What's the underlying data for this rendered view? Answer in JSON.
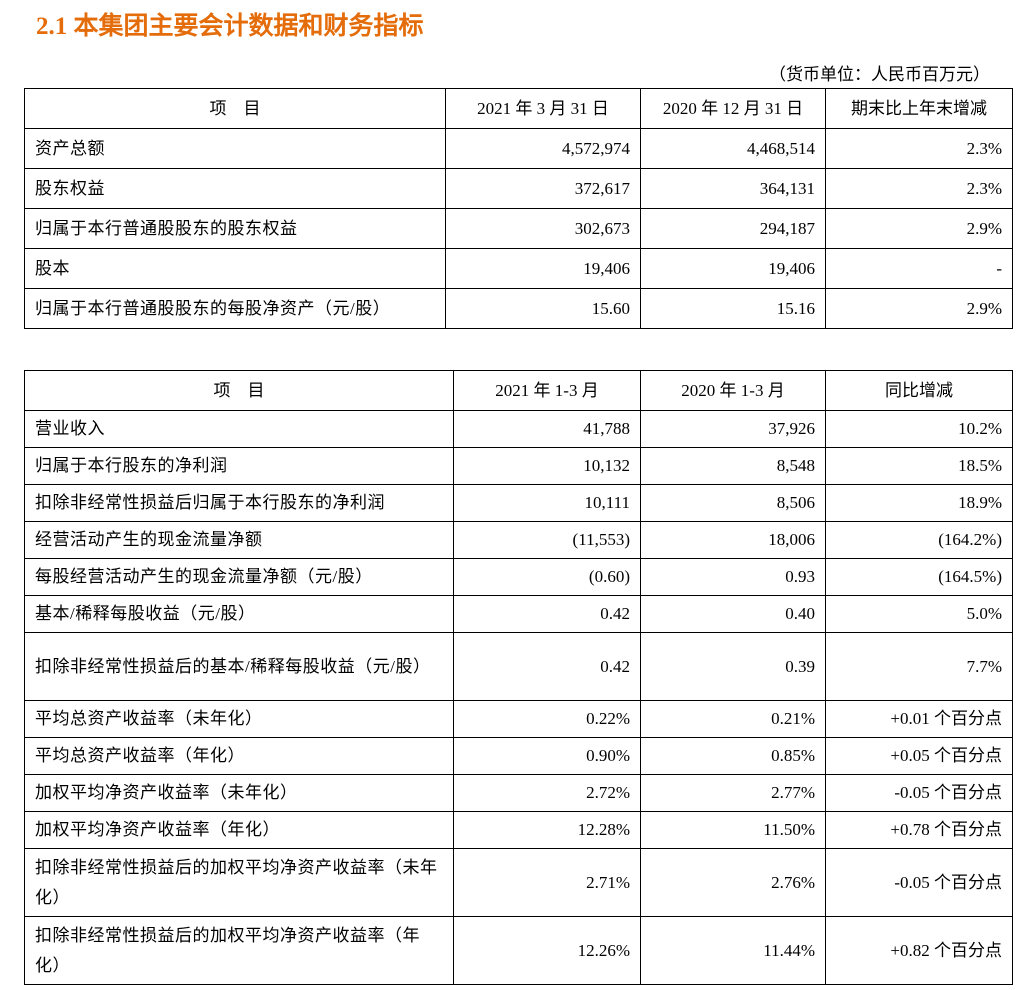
{
  "header": {
    "title": "2.1 本集团主要会计数据和财务指标",
    "unit": "（货币单位：人民币百万元）"
  },
  "table1": {
    "columns": [
      "项　目",
      "2021 年 3 月 31 日",
      "2020 年 12 月 31 日",
      "期末比上年末增减"
    ],
    "rows": [
      [
        "资产总额",
        "4,572,974",
        "4,468,514",
        "2.3%"
      ],
      [
        "股东权益",
        "372,617",
        "364,131",
        "2.3%"
      ],
      [
        "归属于本行普通股股东的股东权益",
        "302,673",
        "294,187",
        "2.9%"
      ],
      [
        "股本",
        "19,406",
        "19,406",
        "-"
      ],
      [
        "归属于本行普通股股东的每股净资产（元/股）",
        "15.60",
        "15.16",
        "2.9%"
      ]
    ]
  },
  "table2": {
    "columns": [
      "项　目",
      "2021 年 1-3 月",
      "2020 年 1-3 月",
      "同比增减"
    ],
    "rows": [
      [
        "营业收入",
        "41,788",
        "37,926",
        "10.2%"
      ],
      [
        "归属于本行股东的净利润",
        "10,132",
        "8,548",
        "18.5%"
      ],
      [
        "扣除非经常性损益后归属于本行股东的净利润",
        "10,111",
        "8,506",
        "18.9%"
      ],
      [
        "经营活动产生的现金流量净额",
        "(11,553)",
        "18,006",
        "(164.2%)"
      ],
      [
        "每股经营活动产生的现金流量净额（元/股）",
        "(0.60)",
        "0.93",
        "(164.5%)"
      ],
      [
        "基本/稀释每股收益（元/股）",
        "0.42",
        "0.40",
        "5.0%"
      ],
      [
        "扣除非经常性损益后的基本/稀释每股收益（元/股）",
        "0.42",
        "0.39",
        "7.7%"
      ],
      [
        "平均总资产收益率（未年化）",
        "0.22%",
        "0.21%",
        "+0.01 个百分点"
      ],
      [
        "平均总资产收益率（年化）",
        "0.90%",
        "0.85%",
        "+0.05 个百分点"
      ],
      [
        "加权平均净资产收益率（未年化）",
        "2.72%",
        "2.77%",
        "-0.05 个百分点"
      ],
      [
        "加权平均净资产收益率（年化）",
        "12.28%",
        "11.50%",
        "+0.78 个百分点"
      ],
      [
        "扣除非经常性损益后的加权平均净资产收益率（未年化）",
        "2.71%",
        "2.76%",
        "-0.05 个百分点"
      ],
      [
        "扣除非经常性损益后的加权平均净资产收益率（年化）",
        "12.26%",
        "11.44%",
        "+0.82 个百分点"
      ]
    ]
  }
}
